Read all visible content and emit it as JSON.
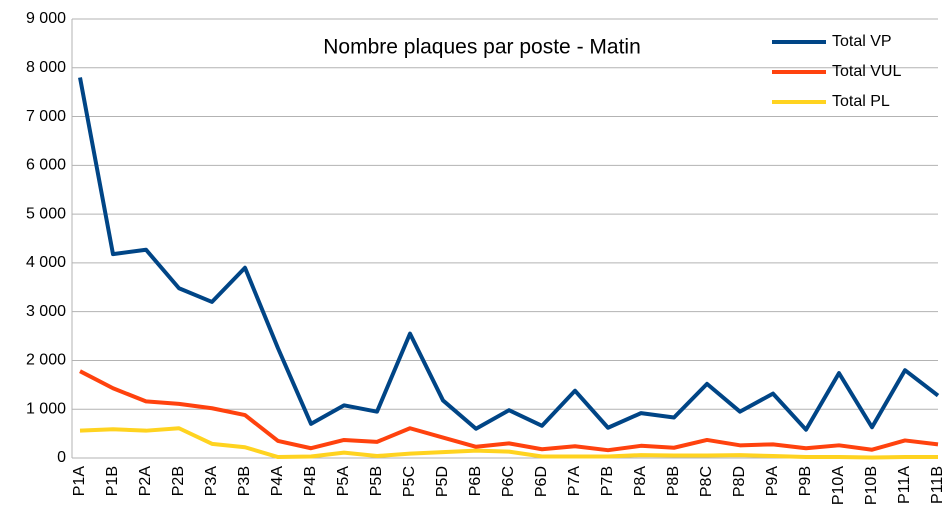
{
  "chart_data": {
    "type": "line",
    "title": "Nombre plaques par poste - Matin",
    "categories": [
      "P1A",
      "P1B",
      "P2A",
      "P2B",
      "P3A",
      "P3B",
      "P4A",
      "P4B",
      "P5A",
      "P5B",
      "P5C",
      "P5D",
      "P6B",
      "P6C",
      "P6D",
      "P7A",
      "P7B",
      "P8A",
      "P8B",
      "P8C",
      "P8D",
      "P9A",
      "P9B",
      "P10A",
      "P10B",
      "P11A",
      "P11B"
    ],
    "series": [
      {
        "name": "Total VP",
        "color": "#004586",
        "values": [
          7800,
          4180,
          4270,
          3480,
          3200,
          3900,
          2250,
          700,
          1080,
          950,
          2550,
          1180,
          600,
          980,
          660,
          1380,
          620,
          920,
          830,
          1520,
          950,
          1320,
          580,
          1740,
          630,
          1800,
          1280
        ]
      },
      {
        "name": "Total VUL",
        "color": "#ff420e",
        "values": [
          1780,
          1430,
          1160,
          1110,
          1020,
          880,
          350,
          200,
          370,
          330,
          610,
          420,
          230,
          300,
          180,
          240,
          160,
          250,
          210,
          370,
          260,
          280,
          200,
          260,
          170,
          360,
          280
        ]
      },
      {
        "name": "Total PL",
        "color": "#ffd320",
        "values": [
          560,
          590,
          560,
          610,
          290,
          220,
          20,
          30,
          110,
          40,
          90,
          120,
          150,
          130,
          30,
          30,
          30,
          60,
          50,
          50,
          60,
          40,
          20,
          20,
          10,
          20,
          20
        ]
      }
    ],
    "ylim": [
      0,
      9000
    ],
    "yticks": [
      0,
      {
        "value": 1000,
        "label": "1 000"
      },
      {
        "value": 2000,
        "label": "2 000"
      },
      {
        "value": 3000,
        "label": "3 000"
      },
      {
        "value": 4000,
        "label": "4 000"
      },
      {
        "value": 5000,
        "label": "5 000"
      },
      {
        "value": 6000,
        "label": "6 000"
      },
      {
        "value": 7000,
        "label": "7 000"
      },
      {
        "value": 8000,
        "label": "8 000"
      },
      {
        "value": 9000,
        "label": "9 000"
      }
    ],
    "grid": true,
    "legend": "top-right"
  }
}
